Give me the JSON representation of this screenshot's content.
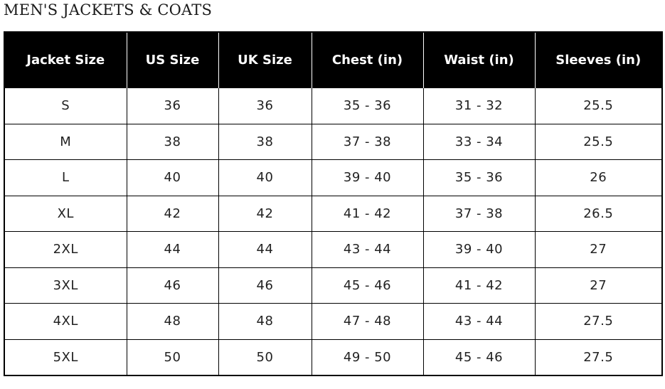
{
  "title": "MEN'S JACKETS & COATS",
  "table": {
    "headers": [
      "Jacket Size",
      "US Size",
      "UK Size",
      "Chest (in)",
      "Waist (in)",
      "Sleeves (in)"
    ],
    "rows": [
      [
        "S",
        "36",
        "36",
        "35 - 36",
        "31 - 32",
        "25.5"
      ],
      [
        "M",
        "38",
        "38",
        "37 - 38",
        "33 - 34",
        "25.5"
      ],
      [
        "L",
        "40",
        "40",
        "39 - 40",
        "35 - 36",
        "26"
      ],
      [
        "XL",
        "42",
        "42",
        "41 - 42",
        "37 - 38",
        "26.5"
      ],
      [
        "2XL",
        "44",
        "44",
        "43 - 44",
        "39 - 40",
        "27"
      ],
      [
        "3XL",
        "46",
        "46",
        "45 - 46",
        "41 - 42",
        "27"
      ],
      [
        "4XL",
        "48",
        "48",
        "47 - 48",
        "43 - 44",
        "27.5"
      ],
      [
        "5XL",
        "50",
        "50",
        "49 - 50",
        "45 - 46",
        "27.5"
      ]
    ]
  }
}
